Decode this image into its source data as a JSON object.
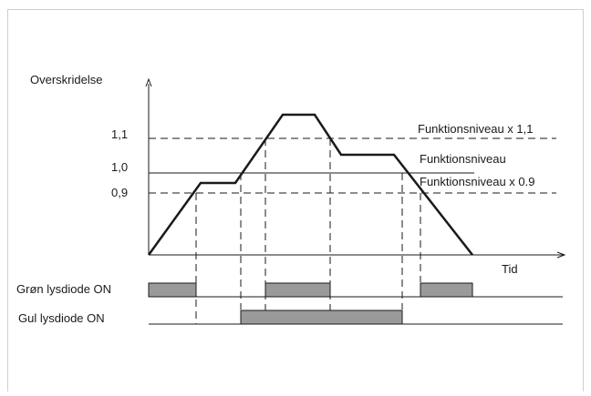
{
  "diagram": {
    "y_axis_label": "Overskridelse",
    "x_axis_label": "Tid",
    "levels": [
      {
        "tick": "1,1",
        "label": "Funktionsniveau x 1,1",
        "value": 1.1
      },
      {
        "tick": "1,0",
        "label": "Funktionsniveau",
        "value": 1.0
      },
      {
        "tick": "0,9",
        "label": "Funktionsniveau x 0.9",
        "value": 0.9
      }
    ],
    "led_rows": [
      {
        "label": "Grøn lysdiode ON"
      },
      {
        "label": "Gul lysdiode ON"
      }
    ],
    "colors": {
      "line": "#1a1a1a",
      "bar_fill": "#9a9a9a",
      "frame": "#cccccc"
    }
  }
}
